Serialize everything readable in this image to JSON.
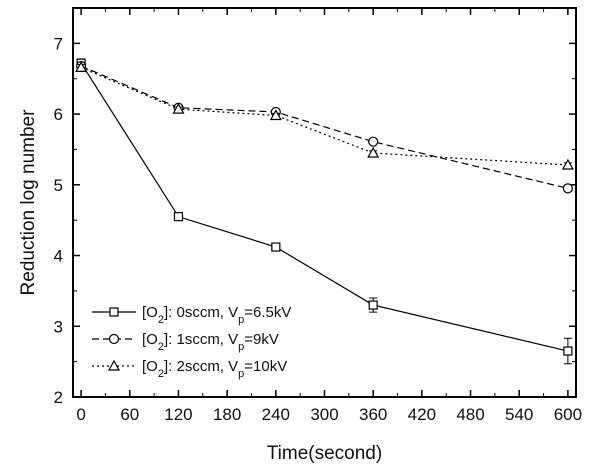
{
  "chart_data": {
    "type": "line",
    "xlabel": "Time(second)",
    "ylabel": "Reduction log number",
    "xlim": [
      -10,
      610
    ],
    "ylim": [
      2,
      7.5
    ],
    "xticks": [
      0,
      60,
      120,
      180,
      240,
      300,
      360,
      420,
      480,
      540,
      600
    ],
    "yticks": [
      2,
      3,
      4,
      5,
      6,
      7
    ],
    "x": [
      0,
      120,
      240,
      360,
      600
    ],
    "legend_position": "bottom-left",
    "grid": false,
    "series": [
      {
        "legend_parts": [
          "[O",
          "2",
          "]: 0sccm, V",
          "p",
          "=6.5kV"
        ],
        "marker": "square",
        "line_style": "solid",
        "values": [
          6.72,
          4.55,
          4.12,
          3.3,
          2.65
        ],
        "errors": [
          0.06,
          0.03,
          0.03,
          0.1,
          0.18
        ]
      },
      {
        "legend_parts": [
          "[O",
          "2",
          "]: 1sccm, V",
          "p",
          "=9kV"
        ],
        "marker": "circle",
        "line_style": "dashed",
        "values": [
          6.68,
          6.09,
          6.03,
          5.61,
          4.95
        ],
        "errors": [
          0.04,
          0.03,
          0.03,
          0.03,
          0.04
        ]
      },
      {
        "legend_parts": [
          "[O",
          "2",
          "]: 2sccm, V",
          "p",
          "=10kV"
        ],
        "marker": "triangle",
        "line_style": "dotted",
        "values": [
          6.66,
          6.07,
          5.98,
          5.45,
          5.28
        ],
        "errors": [
          0.04,
          0.03,
          0.03,
          0.03,
          0.03
        ]
      }
    ],
    "colors": {
      "line": "#000000",
      "marker_fill": "#ffffff"
    }
  }
}
